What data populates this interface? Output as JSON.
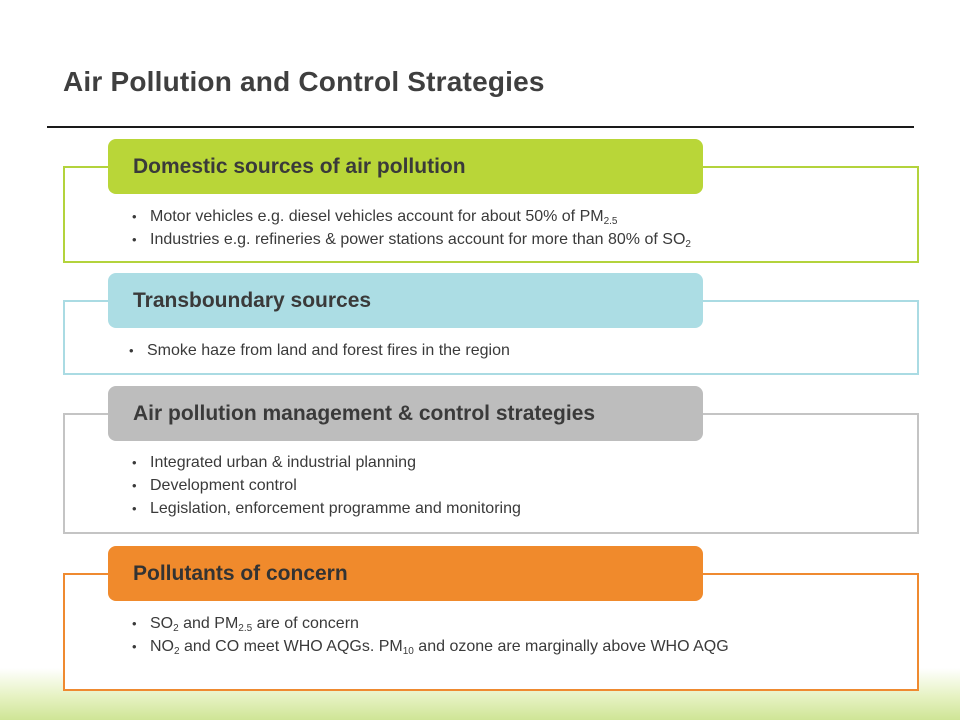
{
  "slide": {
    "title": "Air Pollution and Control Strategies"
  },
  "sections": [
    {
      "heading": "Domestic sources of air pollution",
      "color": "#b9d638",
      "bullets": [
        {
          "parts": [
            {
              "text": "Motor vehicles e.g. diesel vehicles account for about 50% of PM"
            },
            {
              "sub": "2.5"
            }
          ]
        },
        {
          "parts": [
            {
              "text": "Industries e.g. refineries & power stations account  for more than 80% of SO"
            },
            {
              "sub": "2"
            }
          ]
        }
      ]
    },
    {
      "heading": "Transboundary sources",
      "color": "#acdde4",
      "bullets": [
        {
          "parts": [
            {
              "text": "Smoke haze from  land and forest fires in the region"
            }
          ]
        }
      ]
    },
    {
      "heading": "Air pollution management  & control strategies",
      "color": "#bdbdbd",
      "bullets": [
        {
          "parts": [
            {
              "text": "Integrated urban & industrial planning"
            }
          ]
        },
        {
          "parts": [
            {
              "text": "Development  control"
            }
          ]
        },
        {
          "parts": [
            {
              "text": "Legislation, enforcement programme  and  monitoring"
            }
          ]
        }
      ]
    },
    {
      "heading": "Pollutants of concern",
      "color": "#f08a2c",
      "bullets": [
        {
          "parts": [
            {
              "text": "SO"
            },
            {
              "sub": "2"
            },
            {
              "text": " and  PM"
            },
            {
              "sub": "2.5"
            },
            {
              "text": " are of concern"
            }
          ]
        },
        {
          "parts": [
            {
              "text": "NO"
            },
            {
              "sub": "2"
            },
            {
              "text": " and CO meet WHO AQGs. PM"
            },
            {
              "sub": "10"
            },
            {
              "text": " and ozone are marginally above WHO AQG"
            }
          ]
        }
      ]
    }
  ]
}
